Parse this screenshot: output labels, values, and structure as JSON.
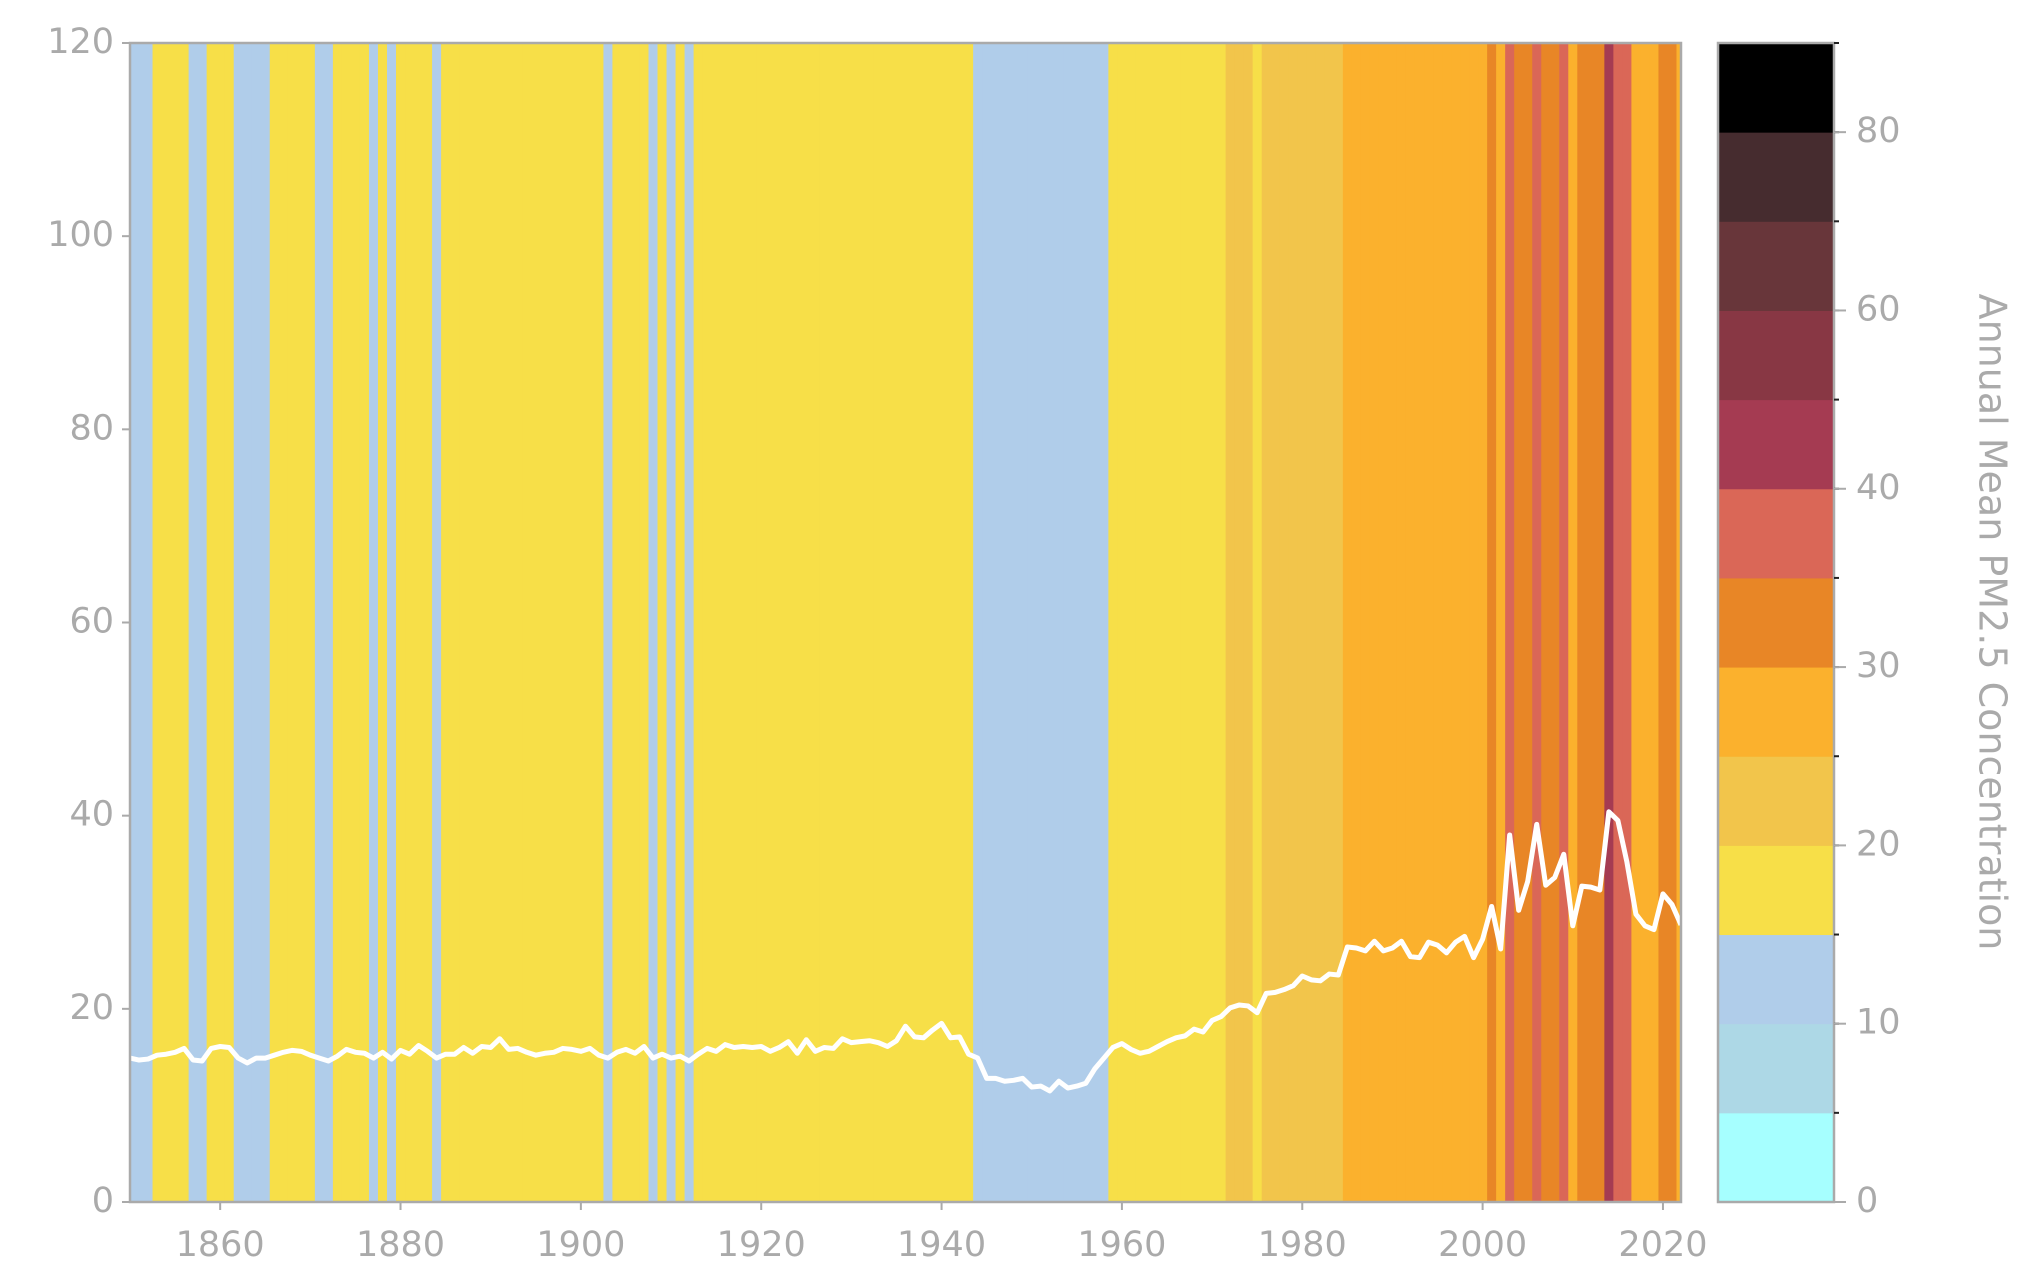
{
  "chart_data": {
    "type": "stripes",
    "xlim": [
      1850,
      2022
    ],
    "ylim": [
      0,
      120
    ],
    "xticks": [
      1860,
      1880,
      1900,
      1920,
      1940,
      1960,
      1980,
      2000,
      2020
    ],
    "yticks": [
      0,
      20,
      40,
      60,
      80,
      100,
      120
    ],
    "line_color": "#ffffff",
    "axis_color": "#aaaaaa",
    "x": [
      1850,
      1851,
      1852,
      1853,
      1854,
      1855,
      1856,
      1857,
      1858,
      1859,
      1860,
      1861,
      1862,
      1863,
      1864,
      1865,
      1866,
      1867,
      1868,
      1869,
      1870,
      1871,
      1872,
      1873,
      1874,
      1875,
      1876,
      1877,
      1878,
      1879,
      1880,
      1881,
      1882,
      1883,
      1884,
      1885,
      1886,
      1887,
      1888,
      1889,
      1890,
      1891,
      1892,
      1893,
      1894,
      1895,
      1896,
      1897,
      1898,
      1899,
      1900,
      1901,
      1902,
      1903,
      1904,
      1905,
      1906,
      1907,
      1908,
      1909,
      1910,
      1911,
      1912,
      1913,
      1914,
      1915,
      1916,
      1917,
      1918,
      1919,
      1920,
      1921,
      1922,
      1923,
      1924,
      1925,
      1926,
      1927,
      1928,
      1929,
      1930,
      1931,
      1932,
      1933,
      1934,
      1935,
      1936,
      1937,
      1938,
      1939,
      1940,
      1941,
      1942,
      1943,
      1944,
      1945,
      1946,
      1947,
      1948,
      1949,
      1950,
      1951,
      1952,
      1953,
      1954,
      1955,
      1956,
      1957,
      1958,
      1959,
      1960,
      1961,
      1962,
      1963,
      1964,
      1965,
      1966,
      1967,
      1968,
      1969,
      1970,
      1971,
      1972,
      1973,
      1974,
      1975,
      1976,
      1977,
      1978,
      1979,
      1980,
      1981,
      1982,
      1983,
      1984,
      1985,
      1986,
      1987,
      1988,
      1989,
      1990,
      1991,
      1992,
      1993,
      1994,
      1995,
      1996,
      1997,
      1998,
      1999,
      2000,
      2001,
      2002,
      2003,
      2004,
      2005,
      2006,
      2007,
      2008,
      2009,
      2010,
      2011,
      2012,
      2013,
      2014,
      2015,
      2016,
      2017,
      2018,
      2019,
      2020,
      2021,
      2022
    ],
    "values": [
      14.9,
      14.7,
      14.8,
      15.2,
      15.3,
      15.5,
      15.9,
      14.7,
      14.6,
      15.9,
      16.1,
      16.0,
      14.9,
      14.4,
      14.9,
      14.9,
      15.2,
      15.5,
      15.7,
      15.6,
      15.2,
      14.9,
      14.6,
      15.1,
      15.8,
      15.5,
      15.4,
      14.9,
      15.5,
      14.8,
      15.7,
      15.3,
      16.2,
      15.6,
      14.9,
      15.3,
      15.3,
      16.0,
      15.4,
      16.1,
      16.0,
      16.9,
      15.8,
      15.9,
      15.5,
      15.2,
      15.4,
      15.5,
      15.9,
      15.8,
      15.6,
      15.9,
      15.2,
      14.9,
      15.5,
      15.8,
      15.4,
      16.1,
      14.9,
      15.3,
      14.9,
      15.1,
      14.6,
      15.3,
      15.9,
      15.6,
      16.3,
      16.0,
      16.1,
      16.0,
      16.1,
      15.6,
      16.0,
      16.6,
      15.4,
      16.8,
      15.6,
      16.0,
      15.9,
      16.9,
      16.5,
      16.6,
      16.7,
      16.5,
      16.1,
      16.7,
      18.2,
      17.1,
      17.0,
      17.8,
      18.5,
      17.0,
      17.1,
      15.3,
      14.9,
      12.8,
      12.8,
      12.5,
      12.6,
      12.8,
      11.9,
      12.0,
      11.5,
      12.5,
      11.8,
      12.0,
      12.3,
      13.8,
      14.9,
      16.0,
      16.4,
      15.8,
      15.4,
      15.6,
      16.1,
      16.6,
      17.0,
      17.2,
      17.9,
      17.6,
      18.8,
      19.2,
      20.1,
      20.4,
      20.3,
      19.6,
      21.6,
      21.7,
      22.0,
      22.4,
      23.4,
      23.0,
      22.9,
      23.6,
      23.5,
      26.4,
      26.3,
      26.0,
      27.0,
      26.0,
      26.3,
      27.0,
      25.4,
      25.3,
      26.9,
      26.6,
      25.8,
      26.9,
      27.5,
      25.3,
      27.2,
      30.6,
      26.2,
      38.0,
      30.2,
      33.2,
      39.1,
      32.8,
      33.6,
      36.0,
      28.6,
      32.7,
      32.6,
      32.3,
      40.4,
      39.5,
      35.2,
      29.8,
      28.6,
      28.2,
      31.9,
      30.8,
      28.7
    ],
    "colorbar": {
      "label": "Annual Mean PM2.5 Concentration",
      "boundaries": [
        0,
        5,
        10,
        15,
        20,
        25,
        30,
        35,
        40,
        50,
        60,
        70,
        80,
        90
      ],
      "colors": [
        "#a6ffff",
        "#add8e6",
        "#b0cdea",
        "#f7df48",
        "#f2c54b",
        "#fbb12d",
        "#e88626",
        "#da6757",
        "#a53b52",
        "#883744",
        "#68363a",
        "#462c2f",
        "#000000"
      ],
      "ticks": [
        0,
        10,
        20,
        30,
        40,
        60,
        80
      ]
    }
  }
}
